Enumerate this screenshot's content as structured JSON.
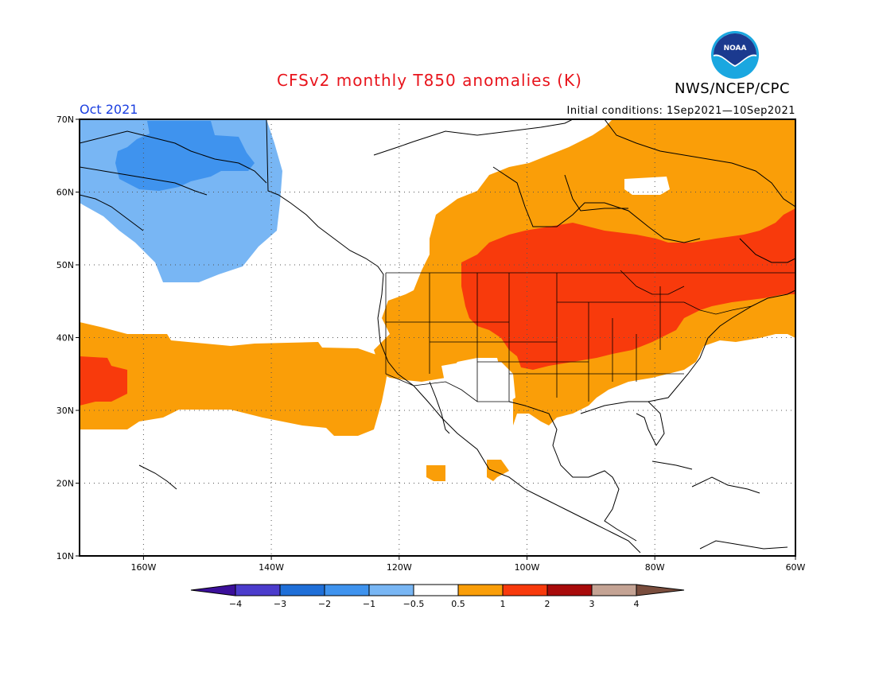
{
  "header": {
    "title": "CFSv2 monthly T850 anomalies (K)",
    "agency": "NWS/NCEP/CPC",
    "month": "Oct 2021",
    "initial_conditions": "Initial conditions: 1Sep2021—10Sep2021",
    "logo_text": "NOAA"
  },
  "map": {
    "lon_range": [
      -172,
      -60
    ],
    "lat_range": [
      10,
      70
    ],
    "lat_labels": [
      "10N",
      "20N",
      "30N",
      "40N",
      "50N",
      "60N",
      "70N"
    ],
    "lon_labels": [
      "160W",
      "140W",
      "120W",
      "100W",
      "80W",
      "60W"
    ],
    "gridlines": "dotted"
  },
  "colorbar": {
    "labels": [
      "−4",
      "−3",
      "−2",
      "−1",
      "−0.5",
      "0.5",
      "1",
      "2",
      "3",
      "4"
    ],
    "colors": {
      "below_-4": "#3b0f9a",
      "-4_-3": "#4b3ccc",
      "-3_-2": "#1f6fd8",
      "-2_-1": "#3f93ee",
      "-1_-0.5": "#78b6f4",
      "-0.5_0.5": "#ffffff",
      "0.5_1": "#fa9e08",
      "1_2": "#f83a0c",
      "2_3": "#a80a0a",
      "3_4": "#c4a394",
      "above_4": "#7a4d3d"
    }
  }
}
